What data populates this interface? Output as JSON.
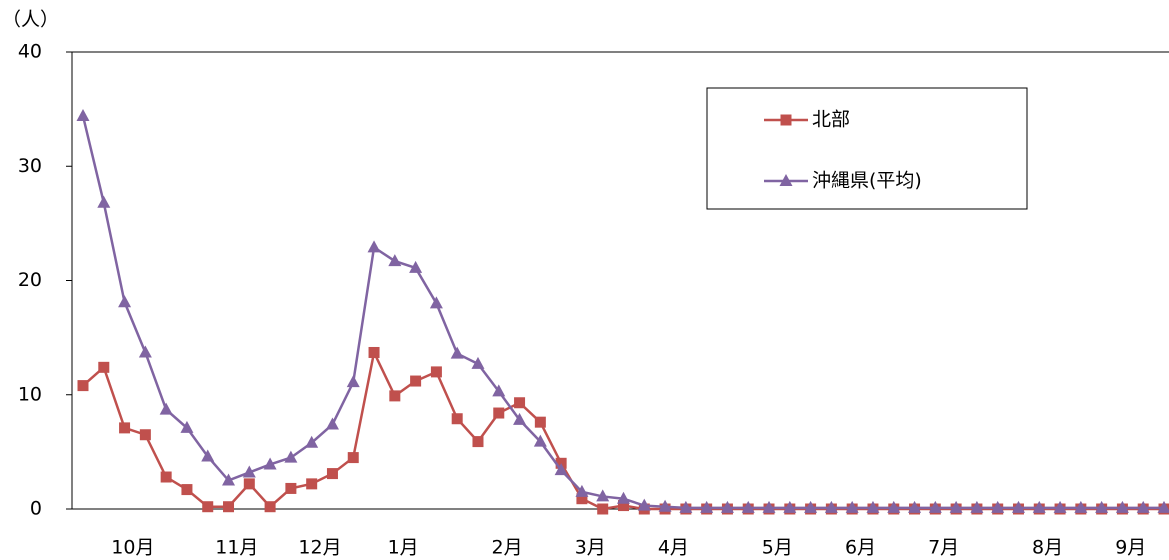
{
  "chart_data": {
    "type": "line",
    "y_unit": "（人）",
    "categories": [
      null,
      null,
      "10月",
      null,
      null,
      null,
      null,
      "11月",
      null,
      null,
      null,
      "12月",
      null,
      null,
      null,
      "1月",
      null,
      null,
      null,
      null,
      "2月",
      null,
      null,
      null,
      "3月",
      null,
      null,
      null,
      "4月",
      null,
      null,
      null,
      null,
      "5月",
      null,
      null,
      null,
      "6月",
      null,
      null,
      null,
      "7月",
      null,
      null,
      null,
      null,
      "8月",
      null,
      null,
      null,
      "9月",
      null,
      null
    ],
    "series": [
      {
        "name": "北部",
        "color": "#c0504d",
        "marker": "square",
        "values": [
          10.8,
          12.4,
          7.1,
          6.5,
          2.8,
          1.7,
          0.2,
          0.2,
          2.2,
          0.2,
          1.8,
          2.2,
          3.1,
          4.5,
          13.7,
          9.9,
          11.2,
          12.0,
          7.9,
          5.9,
          8.4,
          9.3,
          7.6,
          4.0,
          0.9,
          0,
          0.3,
          0,
          0,
          0,
          0,
          0,
          0,
          0,
          0,
          0,
          0,
          0,
          0,
          0,
          0,
          0,
          0,
          0,
          0,
          0,
          0,
          0,
          0,
          0,
          0,
          0,
          0
        ]
      },
      {
        "name": "沖縄県(平均)",
        "color": "#8064a2",
        "marker": "triangle",
        "values": [
          34.4,
          26.8,
          18.1,
          13.7,
          8.7,
          7.1,
          4.6,
          2.5,
          3.2,
          3.9,
          4.5,
          5.8,
          7.4,
          11.1,
          22.9,
          21.7,
          21.1,
          18.0,
          13.6,
          12.7,
          10.3,
          7.8,
          5.9,
          3.4,
          1.5,
          1.1,
          0.9,
          0.3,
          0.2,
          0.1,
          0.1,
          0.1,
          0.1,
          0.1,
          0.1,
          0.1,
          0.1,
          0.1,
          0.1,
          0.1,
          0.1,
          0.1,
          0.1,
          0.1,
          0.1,
          0.1,
          0.1,
          0.1,
          0.1,
          0.1,
          0.1,
          0.1,
          0.1
        ]
      }
    ],
    "ylim": [
      0,
      40
    ],
    "yticks": [
      0,
      10,
      20,
      30,
      40
    ],
    "grid": false
  }
}
